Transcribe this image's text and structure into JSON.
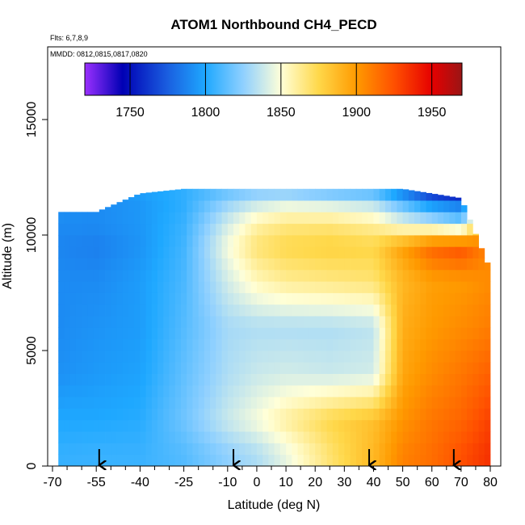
{
  "chart_data": {
    "type": "heatmap",
    "title": "ATOM1 Northbound CH4_PECD",
    "flights_note": "Flts: 6,7,8,9",
    "dates_note": "MMDD: 0812,0815,0817,0820",
    "xlabel": "Latitude (deg N)",
    "ylabel": "Altitude (m)",
    "xlim": [
      -70,
      80
    ],
    "ylim": [
      0,
      17500
    ],
    "x_ticks": [
      -70,
      -55,
      -40,
      -25,
      -10,
      0,
      10,
      20,
      30,
      40,
      50,
      60,
      70,
      80
    ],
    "y_ticks": [
      0,
      5000,
      10000,
      15000
    ],
    "colorbar": {
      "range": [
        1720,
        1970
      ],
      "ticks": [
        1750,
        1800,
        1850,
        1900,
        1950
      ],
      "stops": [
        {
          "value": 1720,
          "color": "#9b30ff"
        },
        {
          "value": 1745,
          "color": "#0000b4"
        },
        {
          "value": 1775,
          "color": "#1a5fe0"
        },
        {
          "value": 1800,
          "color": "#1ea8ff"
        },
        {
          "value": 1825,
          "color": "#8fd0ff"
        },
        {
          "value": 1850,
          "color": "#ffffd8"
        },
        {
          "value": 1875,
          "color": "#ffd84a"
        },
        {
          "value": 1900,
          "color": "#ff9a00"
        },
        {
          "value": 1925,
          "color": "#ff5000"
        },
        {
          "value": 1950,
          "color": "#e60000"
        },
        {
          "value": 1970,
          "color": "#9a1515"
        }
      ]
    },
    "data_extent": {
      "lat_min": -68,
      "lat_max": 80,
      "lat_breaks": [
        -68,
        -55,
        -40,
        -25,
        -10,
        10,
        45,
        50,
        70,
        80
      ],
      "top_altitude_by_break": [
        11000,
        11000,
        11800,
        12000,
        12000,
        12000,
        12000,
        12000,
        11600,
        8500
      ]
    },
    "ch4_profiles": [
      {
        "lat": -68,
        "alt": [
          500,
          2000,
          4000,
          6000,
          8000,
          9500,
          10500,
          11200
        ],
        "ch4": [
          1805,
          1800,
          1792,
          1790,
          1790,
          1788,
          1790,
          1792
        ]
      },
      {
        "lat": -55,
        "alt": [
          500,
          2000,
          4000,
          6000,
          8000,
          9500,
          10500,
          11200
        ],
        "ch4": [
          1806,
          1800,
          1795,
          1793,
          1790,
          1786,
          1790,
          1790
        ]
      },
      {
        "lat": -40,
        "alt": [
          500,
          2000,
          4000,
          6000,
          8000,
          9500,
          10500,
          11200,
          11800
        ],
        "ch4": [
          1806,
          1802,
          1798,
          1796,
          1796,
          1793,
          1794,
          1794,
          1796
        ]
      },
      {
        "lat": -25,
        "alt": [
          500,
          2000,
          4000,
          6000,
          8000,
          9500,
          10500,
          11200,
          11800
        ],
        "ch4": [
          1812,
          1818,
          1815,
          1812,
          1810,
          1808,
          1806,
          1804,
          1804
        ]
      },
      {
        "lat": -10,
        "alt": [
          500,
          2000,
          4000,
          6000,
          8000,
          9500,
          10500,
          11200,
          11800
        ],
        "ch4": [
          1825,
          1838,
          1832,
          1830,
          1840,
          1848,
          1840,
          1830,
          1818
        ]
      },
      {
        "lat": 0,
        "alt": [
          500,
          2000,
          4000,
          6000,
          8000,
          9500,
          10500,
          11200,
          11800
        ],
        "ch4": [
          1832,
          1848,
          1838,
          1832,
          1855,
          1868,
          1858,
          1842,
          1825
        ]
      },
      {
        "lat": 10,
        "alt": [
          500,
          2000,
          4000,
          6000,
          8000,
          9500,
          10500,
          11200,
          11800
        ],
        "ch4": [
          1845,
          1860,
          1840,
          1832,
          1862,
          1875,
          1865,
          1848,
          1826
        ]
      },
      {
        "lat": 25,
        "alt": [
          500,
          2000,
          4000,
          6000,
          8000,
          9500,
          10500,
          11200,
          11800
        ],
        "ch4": [
          1868,
          1875,
          1838,
          1832,
          1865,
          1878,
          1866,
          1846,
          1820
        ]
      },
      {
        "lat": 40,
        "alt": [
          500,
          2000,
          4000,
          6000,
          8000,
          9500,
          10500,
          11200,
          11800
        ],
        "ch4": [
          1888,
          1885,
          1840,
          1835,
          1868,
          1876,
          1860,
          1840,
          1815
        ]
      },
      {
        "lat": 50,
        "alt": [
          500,
          2000,
          4000,
          6000,
          8000,
          9500,
          10500,
          11200,
          11800
        ],
        "ch4": [
          1908,
          1902,
          1895,
          1892,
          1888,
          1898,
          1845,
          1820,
          1790
        ]
      },
      {
        "lat": 60,
        "alt": [
          500,
          2000,
          4000,
          6000,
          8000,
          9500,
          10500,
          11200,
          11800
        ],
        "ch4": [
          1915,
          1912,
          1905,
          1900,
          1898,
          1918,
          1838,
          1800,
          1765
        ]
      },
      {
        "lat": 70,
        "alt": [
          500,
          2000,
          4000,
          6000,
          8000,
          9500,
          10500,
          11200,
          11800
        ],
        "ch4": [
          1925,
          1918,
          1912,
          1905,
          1900,
          1925,
          1825,
          1790,
          1755
        ]
      },
      {
        "lat": 80,
        "alt": [
          500,
          2000,
          4000,
          6000,
          8000
        ],
        "ch4": [
          1935,
          1930,
          1920,
          1910,
          1905
        ]
      }
    ],
    "arrow_latitudes": [
      -54,
      -8,
      38.5,
      67.5
    ]
  }
}
